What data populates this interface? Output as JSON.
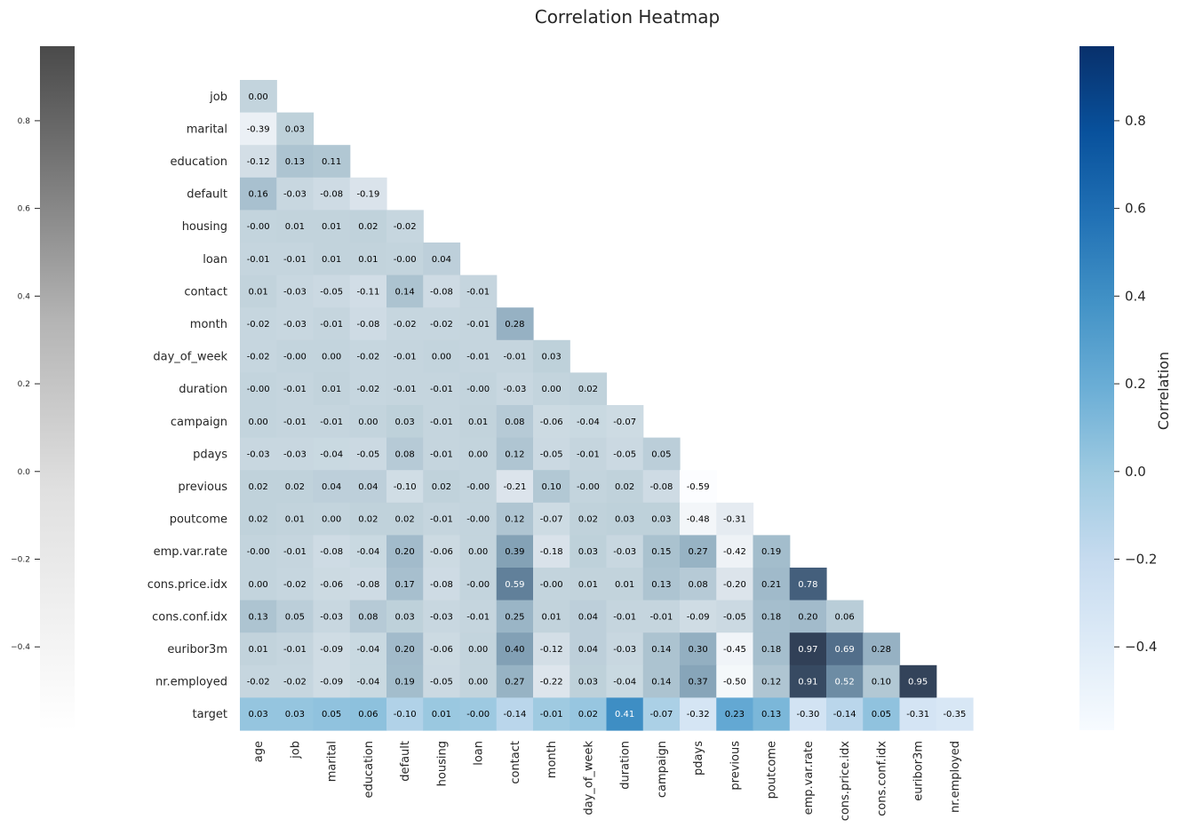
{
  "chart_data": {
    "type": "heatmap",
    "title": "Correlation Heatmap",
    "colorbar_label": "Correlation",
    "row_labels": [
      "job",
      "marital",
      "education",
      "default",
      "housing",
      "loan",
      "contact",
      "month",
      "day_of_week",
      "duration",
      "campaign",
      "pdays",
      "previous",
      "poutcome",
      "emp.var.rate",
      "cons.price.idx",
      "cons.conf.idx",
      "euribor3m",
      "nr.employed",
      "target"
    ],
    "col_labels": [
      "age",
      "job",
      "marital",
      "education",
      "default",
      "housing",
      "loan",
      "contact",
      "month",
      "day_of_week",
      "duration",
      "campaign",
      "pdays",
      "previous",
      "poutcome",
      "emp.var.rate",
      "cons.price.idx",
      "cons.conf.idx",
      "euribor3m",
      "nr.employed"
    ],
    "values": [
      [
        0.0
      ],
      [
        -0.39,
        0.03
      ],
      [
        -0.12,
        0.13,
        0.11
      ],
      [
        0.16,
        -0.03,
        -0.08,
        -0.19
      ],
      [
        -0.0,
        0.01,
        0.01,
        0.02,
        -0.02
      ],
      [
        -0.01,
        -0.01,
        0.01,
        0.01,
        -0.0,
        0.04
      ],
      [
        0.01,
        -0.03,
        -0.05,
        -0.11,
        0.14,
        -0.08,
        -0.01
      ],
      [
        -0.02,
        -0.03,
        -0.01,
        -0.08,
        -0.02,
        -0.02,
        -0.01,
        0.28
      ],
      [
        -0.02,
        -0.0,
        0.0,
        -0.02,
        -0.01,
        0.0,
        -0.01,
        -0.01,
        0.03
      ],
      [
        -0.0,
        -0.01,
        0.01,
        -0.02,
        -0.01,
        -0.01,
        -0.0,
        -0.03,
        0.0,
        0.02
      ],
      [
        0.0,
        -0.01,
        -0.01,
        0.0,
        0.03,
        -0.01,
        0.01,
        0.08,
        -0.06,
        -0.04,
        -0.07
      ],
      [
        -0.03,
        -0.03,
        -0.04,
        -0.05,
        0.08,
        -0.01,
        0.0,
        0.12,
        -0.05,
        -0.01,
        -0.05,
        0.05
      ],
      [
        0.02,
        0.02,
        0.04,
        0.04,
        -0.1,
        0.02,
        -0.0,
        -0.21,
        0.1,
        -0.0,
        0.02,
        -0.08,
        -0.59
      ],
      [
        0.02,
        0.01,
        0.0,
        0.02,
        0.02,
        -0.01,
        -0.0,
        0.12,
        -0.07,
        0.02,
        0.03,
        0.03,
        -0.48,
        -0.31
      ],
      [
        -0.0,
        -0.01,
        -0.08,
        -0.04,
        0.2,
        -0.06,
        0.0,
        0.39,
        -0.18,
        0.03,
        -0.03,
        0.15,
        0.27,
        -0.42,
        0.19
      ],
      [
        0.0,
        -0.02,
        -0.06,
        -0.08,
        0.17,
        -0.08,
        -0.0,
        0.59,
        -0.0,
        0.01,
        0.01,
        0.13,
        0.08,
        -0.2,
        0.21,
        0.78
      ],
      [
        0.13,
        0.05,
        -0.03,
        0.08,
        0.03,
        -0.03,
        -0.01,
        0.25,
        0.01,
        0.04,
        -0.01,
        -0.01,
        -0.09,
        -0.05,
        0.18,
        0.2,
        0.06
      ],
      [
        0.01,
        -0.01,
        -0.09,
        -0.04,
        0.2,
        -0.06,
        0.0,
        0.4,
        -0.12,
        0.04,
        -0.03,
        0.14,
        0.3,
        -0.45,
        0.18,
        0.97,
        0.69,
        0.28
      ],
      [
        -0.02,
        -0.02,
        -0.09,
        -0.04,
        0.19,
        -0.05,
        0.0,
        0.27,
        -0.22,
        0.03,
        -0.04,
        0.14,
        0.37,
        -0.5,
        0.12,
        0.91,
        0.52,
        0.1,
        0.95
      ],
      [
        0.03,
        0.03,
        0.05,
        0.06,
        -0.1,
        0.01,
        -0.0,
        -0.14,
        -0.01,
        0.02,
        0.41,
        -0.07,
        -0.32,
        0.23,
        0.13,
        -0.3,
        -0.14,
        0.05,
        -0.31,
        -0.35
      ]
    ],
    "color_range": [
      -0.59,
      0.97
    ],
    "left_colorbar_ticks": [
      "0.8",
      "0.6",
      "0.4",
      "0.2",
      "0.0",
      "−0.2",
      "−0.4"
    ],
    "right_colorbar_ticks": [
      "0.8",
      "0.6",
      "0.4",
      "0.2",
      "0.0",
      "−0.2",
      "−0.4"
    ],
    "cmap_main": "Blues",
    "cmap_overlay": "Greys",
    "grid": false
  }
}
